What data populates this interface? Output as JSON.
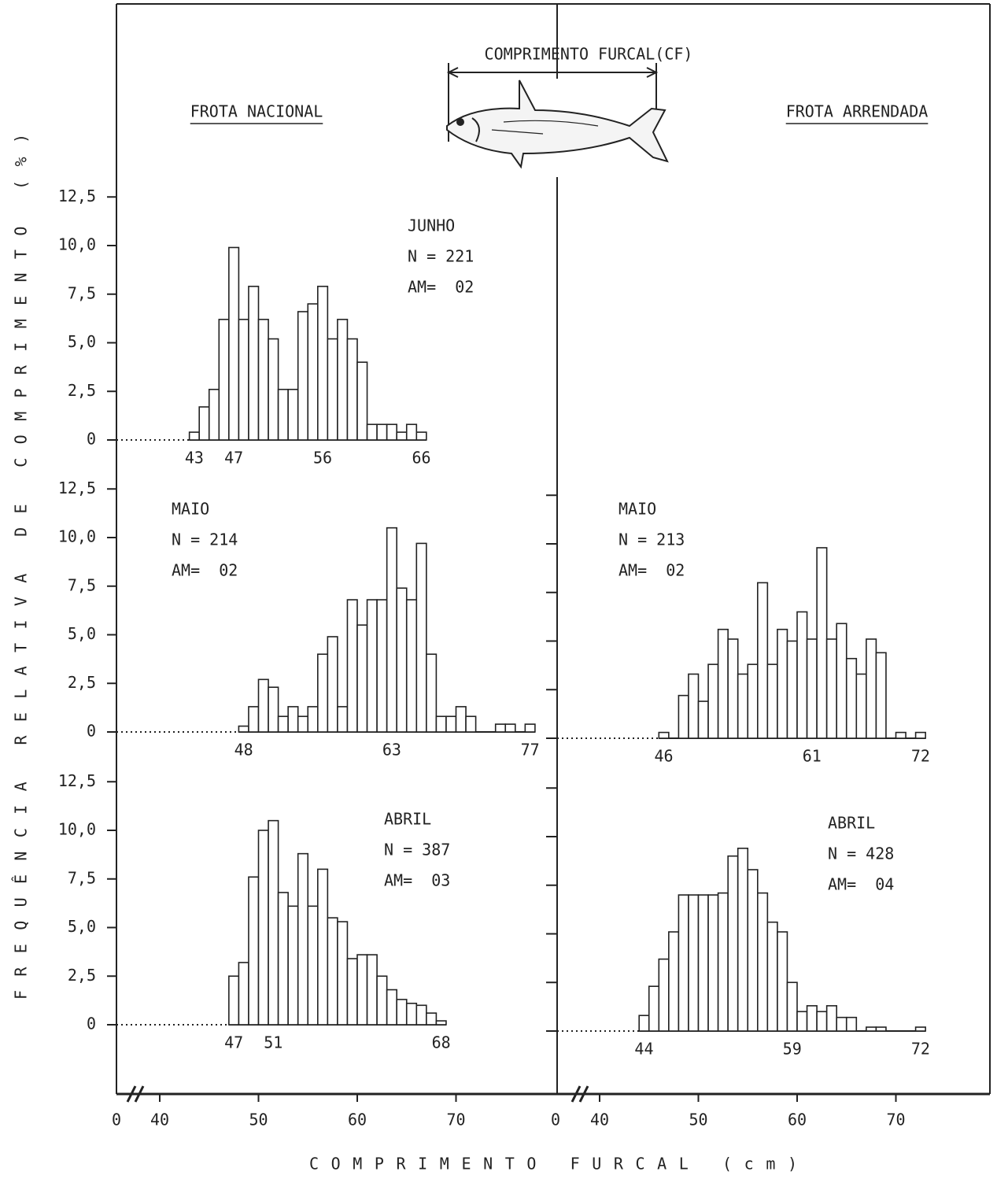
{
  "figure": {
    "ylabel": "FREQUÊNCIA RELATIVA DE COMPRIMENTO (%)",
    "xlabel": "COMPRIMENTO FURCAL (cm)",
    "fish_label": "COMPRIMENTO FURCAL(CF)"
  },
  "chart_data": [
    {
      "type": "histogram",
      "name": "FROTA NACIONAL",
      "xlim": [
        40,
        80
      ],
      "xticks": [
        40,
        50,
        60,
        70
      ],
      "xorigin": 0,
      "panels": [
        {
          "annotations": [
            "JUNHO",
            "N = 221",
            "AM=  02"
          ],
          "bins": [
            43,
            44,
            45,
            46,
            47,
            48,
            49,
            50,
            51,
            52,
            53,
            54,
            55,
            56,
            57,
            58,
            59,
            60,
            61,
            62,
            63,
            64,
            65,
            66,
            67
          ],
          "values": [
            0.4,
            1.7,
            2.6,
            6.2,
            9.9,
            6.2,
            7.9,
            6.2,
            5.2,
            2.6,
            2.6,
            6.6,
            7.0,
            7.9,
            5.2,
            6.2,
            5.2,
            4.0,
            0.8,
            0.8,
            0.8,
            0.4,
            0.8,
            0.4
          ],
          "bin_labels": [
            43,
            47,
            56,
            66
          ],
          "ylim": [
            0,
            12.5
          ],
          "yticks": [
            0,
            {
              "value": 2.5,
              "label": "2,5"
            },
            {
              "value": 5,
              "label": "5,0"
            },
            {
              "value": 7.5,
              "label": "7,5"
            },
            {
              "value": 10,
              "label": "10,0"
            },
            {
              "value": 12.5,
              "label": "12,5"
            }
          ]
        },
        {
          "annotations": [
            "MAIO",
            "N = 214",
            "AM=  02"
          ],
          "bins": [
            48,
            49,
            50,
            51,
            52,
            53,
            54,
            55,
            56,
            57,
            58,
            59,
            60,
            61,
            62,
            63,
            64,
            65,
            66,
            67,
            68,
            69,
            70,
            71,
            72,
            73,
            74,
            75,
            76,
            77,
            78
          ],
          "values": [
            0.3,
            1.3,
            2.7,
            2.3,
            0.8,
            1.3,
            0.8,
            1.3,
            4.0,
            4.9,
            1.3,
            6.8,
            5.5,
            6.8,
            6.8,
            10.5,
            7.4,
            6.8,
            9.7,
            4.0,
            0.8,
            0.8,
            1.3,
            0.8,
            0,
            0,
            0.4,
            0.4,
            0,
            0.4
          ],
          "bin_labels": [
            48,
            63,
            77
          ],
          "ylim": [
            0,
            12.5
          ],
          "yticks": [
            0,
            {
              "value": 2.5,
              "label": "2,5"
            },
            {
              "value": 5,
              "label": "5,0"
            },
            {
              "value": 7.5,
              "label": "7,5"
            },
            {
              "value": 10,
              "label": "10,0"
            },
            {
              "value": 12.5,
              "label": "12,5"
            }
          ]
        },
        {
          "annotations": [
            "ABRIL",
            "N = 387",
            "AM=  03"
          ],
          "bins": [
            47,
            48,
            49,
            50,
            51,
            52,
            53,
            54,
            55,
            56,
            57,
            58,
            59,
            60,
            61,
            62,
            63,
            64,
            65,
            66,
            67,
            68,
            69
          ],
          "values": [
            2.5,
            3.2,
            7.6,
            10.0,
            10.5,
            6.8,
            6.1,
            8.8,
            6.1,
            8.0,
            5.5,
            5.3,
            3.4,
            3.6,
            3.6,
            2.5,
            1.8,
            1.3,
            1.1,
            1.0,
            0.6,
            0.2
          ],
          "bin_labels": [
            47,
            51,
            68
          ],
          "ylim": [
            0,
            12.5
          ],
          "yticks": [
            0,
            {
              "value": 2.5,
              "label": "2,5"
            },
            {
              "value": 5,
              "label": "5,0"
            },
            {
              "value": 7.5,
              "label": "7,5"
            },
            {
              "value": 10,
              "label": "10,0"
            },
            {
              "value": 12.5,
              "label": "12,5"
            }
          ]
        }
      ]
    },
    {
      "type": "histogram",
      "name": "FROTA ARRENDADA",
      "xlim": [
        40,
        80
      ],
      "xticks": [
        40,
        50,
        60,
        70
      ],
      "xorigin": 0,
      "panels": [
        {
          "annotations": [
            "MAIO",
            "N = 213",
            "AM=  02"
          ],
          "bins": [
            46,
            47,
            48,
            49,
            50,
            51,
            52,
            53,
            54,
            55,
            56,
            57,
            58,
            59,
            60,
            61,
            62,
            63,
            64,
            65,
            66,
            67,
            68,
            69,
            70,
            71,
            72,
            73
          ],
          "values": [
            0.3,
            0,
            2.2,
            3.3,
            1.9,
            3.8,
            5.6,
            5.1,
            3.3,
            3.8,
            8.0,
            3.8,
            5.6,
            5.0,
            6.5,
            5.1,
            9.8,
            5.1,
            5.9,
            4.1,
            3.3,
            5.1,
            4.4,
            0,
            0.3,
            0,
            0.3
          ],
          "bin_labels": [
            46,
            61,
            72
          ],
          "ylim": [
            0,
            12.5
          ]
        },
        {
          "annotations": [
            "ABRIL",
            "N = 428",
            "AM=  04"
          ],
          "bins": [
            44,
            45,
            46,
            47,
            48,
            49,
            50,
            51,
            52,
            53,
            54,
            55,
            56,
            57,
            58,
            59,
            60,
            61,
            62,
            63,
            64,
            65,
            66,
            67,
            68,
            69,
            70,
            71,
            72,
            73
          ],
          "values": [
            0.8,
            2.3,
            3.7,
            5.1,
            7.0,
            7.0,
            7.0,
            7.0,
            7.1,
            9.0,
            9.4,
            8.3,
            7.1,
            5.6,
            5.1,
            2.5,
            1.0,
            1.3,
            1.0,
            1.3,
            0.7,
            0.7,
            0,
            0.2,
            0.2,
            0,
            0,
            0,
            0.2
          ],
          "bin_labels": [
            44,
            59,
            72
          ],
          "ylim": [
            0,
            12.5
          ]
        }
      ]
    }
  ]
}
